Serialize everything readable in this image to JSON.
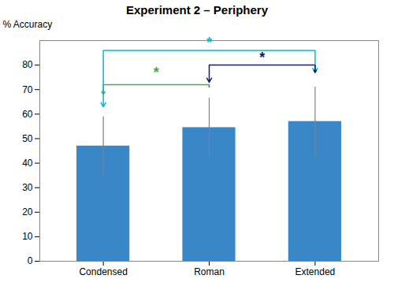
{
  "chart_data": {
    "type": "bar",
    "title": "Experiment 2 – Periphery",
    "ylabel": "% Accuracy",
    "categories": [
      "Condensed",
      "Roman",
      "Extended"
    ],
    "values": [
      47.0,
      54.5,
      57.0
    ],
    "errors": [
      12.0,
      12.0,
      14.0
    ],
    "color": "#3a87c8",
    "ylim": [
      0,
      90
    ],
    "yticks": [
      0,
      10,
      20,
      30,
      40,
      50,
      60,
      70,
      80
    ],
    "annotations": [
      {
        "type": "bracket",
        "from": "Condensed",
        "to": "Roman",
        "y": 72,
        "from_y": 68,
        "to_y": 71,
        "text": "*",
        "text_y": 77,
        "color": "#4aaa4a"
      },
      {
        "type": "bracket",
        "from": "Condensed",
        "to": "Extended",
        "y": 86,
        "from_y": 63,
        "to_y": 77,
        "text": "*",
        "text_y": 89,
        "color": "#00bcd4"
      },
      {
        "type": "bracket",
        "from": "Roman",
        "to": "Extended",
        "y": 80,
        "from_y": 73,
        "to_y": 77,
        "text": "*",
        "text_y": 83,
        "color": "#1a1a6e"
      }
    ]
  }
}
